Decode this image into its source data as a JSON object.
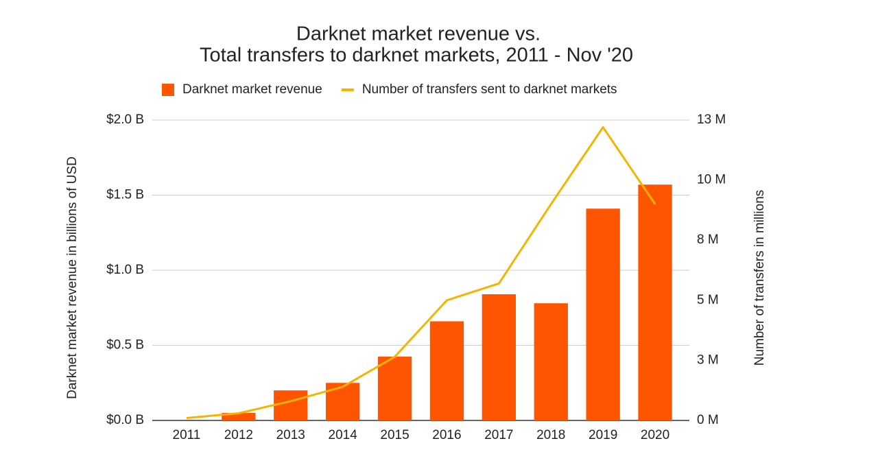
{
  "chart_data": {
    "type": "bar",
    "title": [
      "Darknet market revenue vs.",
      "Total transfers to darknet markets, 2011 - Nov '20"
    ],
    "ylabel": "Darknet market revenue in billions of USD",
    "y2label": "Number of transfers in millions",
    "categories": [
      "2011",
      "2012",
      "2013",
      "2014",
      "2015",
      "2016",
      "2017",
      "2018",
      "2019",
      "2020"
    ],
    "series": [
      {
        "name": "Darknet market revenue",
        "type": "bar",
        "color": "#ff5500",
        "values": [
          0,
          0.05,
          0.2,
          0.25,
          0.425,
          0.66,
          0.84,
          0.78,
          1.41,
          1.57
        ]
      },
      {
        "name": "Number of transfers sent to darknet markets",
        "type": "line",
        "axis": "y2",
        "color": "#f4b400",
        "values": [
          0.1,
          0.3,
          0.8,
          1.4,
          2.65,
          5.0,
          5.7,
          9.0,
          12.2,
          9.0
        ]
      }
    ],
    "ylim": [
      0,
      2
    ],
    "yticks": [
      {
        "value": 0,
        "label": "$0.0 B"
      },
      {
        "value": 0.5,
        "label": "$0.5 B"
      },
      {
        "value": 1,
        "label": "$1.0 B"
      },
      {
        "value": 1.5,
        "label": "$1.5 B"
      },
      {
        "value": 2,
        "label": "$2.0 B"
      }
    ],
    "y2lim": [
      0,
      12.5
    ],
    "y2ticks": [
      {
        "value": 0,
        "label": "0 M"
      },
      {
        "value": 2.5,
        "label": "3 M"
      },
      {
        "value": 5,
        "label": "5 M"
      },
      {
        "value": 7.5,
        "label": "8 M"
      },
      {
        "value": 10,
        "label": "10 M"
      },
      {
        "value": 12.5,
        "label": "13 M"
      }
    ],
    "grid": true,
    "legend": "top"
  }
}
